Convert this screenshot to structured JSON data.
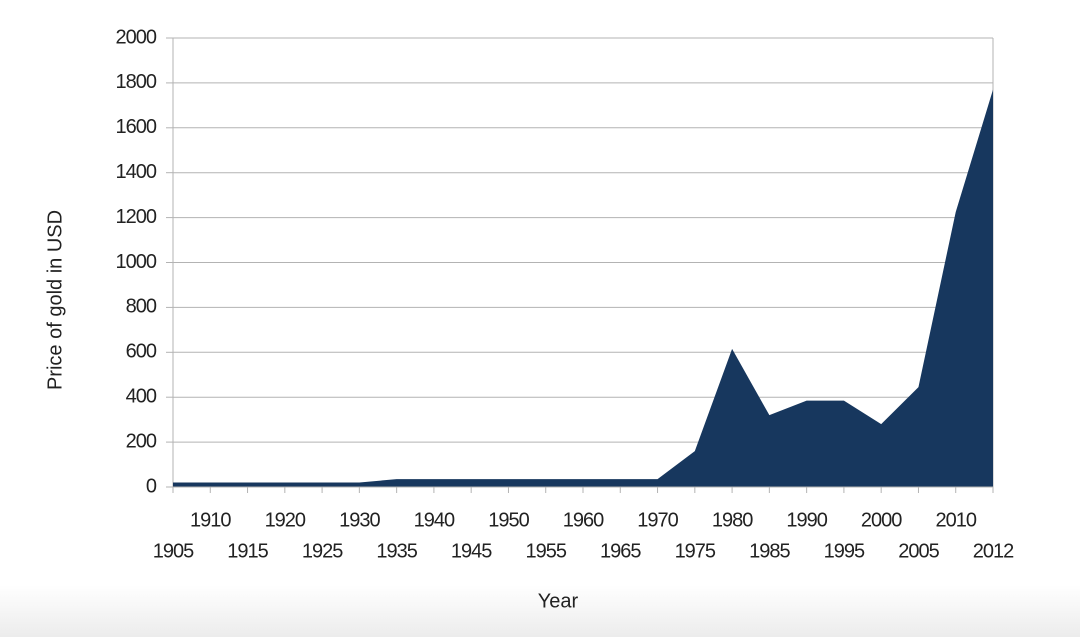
{
  "chart_data": {
    "type": "area",
    "x_label": "Year",
    "y_label": "Price of gold in USD",
    "categories": [
      "1905",
      "1910",
      "1915",
      "1920",
      "1925",
      "1930",
      "1935",
      "1940",
      "1945",
      "1950",
      "1955",
      "1960",
      "1965",
      "1970",
      "1975",
      "1980",
      "1985",
      "1990",
      "1995",
      "2000",
      "2005",
      "2010",
      "2012"
    ],
    "values": [
      20,
      20,
      20,
      20,
      20,
      20,
      35,
      35,
      35,
      35,
      35,
      35,
      35,
      35,
      160,
      615,
      320,
      385,
      385,
      280,
      445,
      1225,
      1770
    ],
    "color": "#17375e",
    "ylim": [
      0,
      2000
    ],
    "yticks": [
      0,
      200,
      400,
      600,
      800,
      1000,
      1200,
      1400,
      1600,
      1800,
      2000
    ],
    "grid": true
  }
}
